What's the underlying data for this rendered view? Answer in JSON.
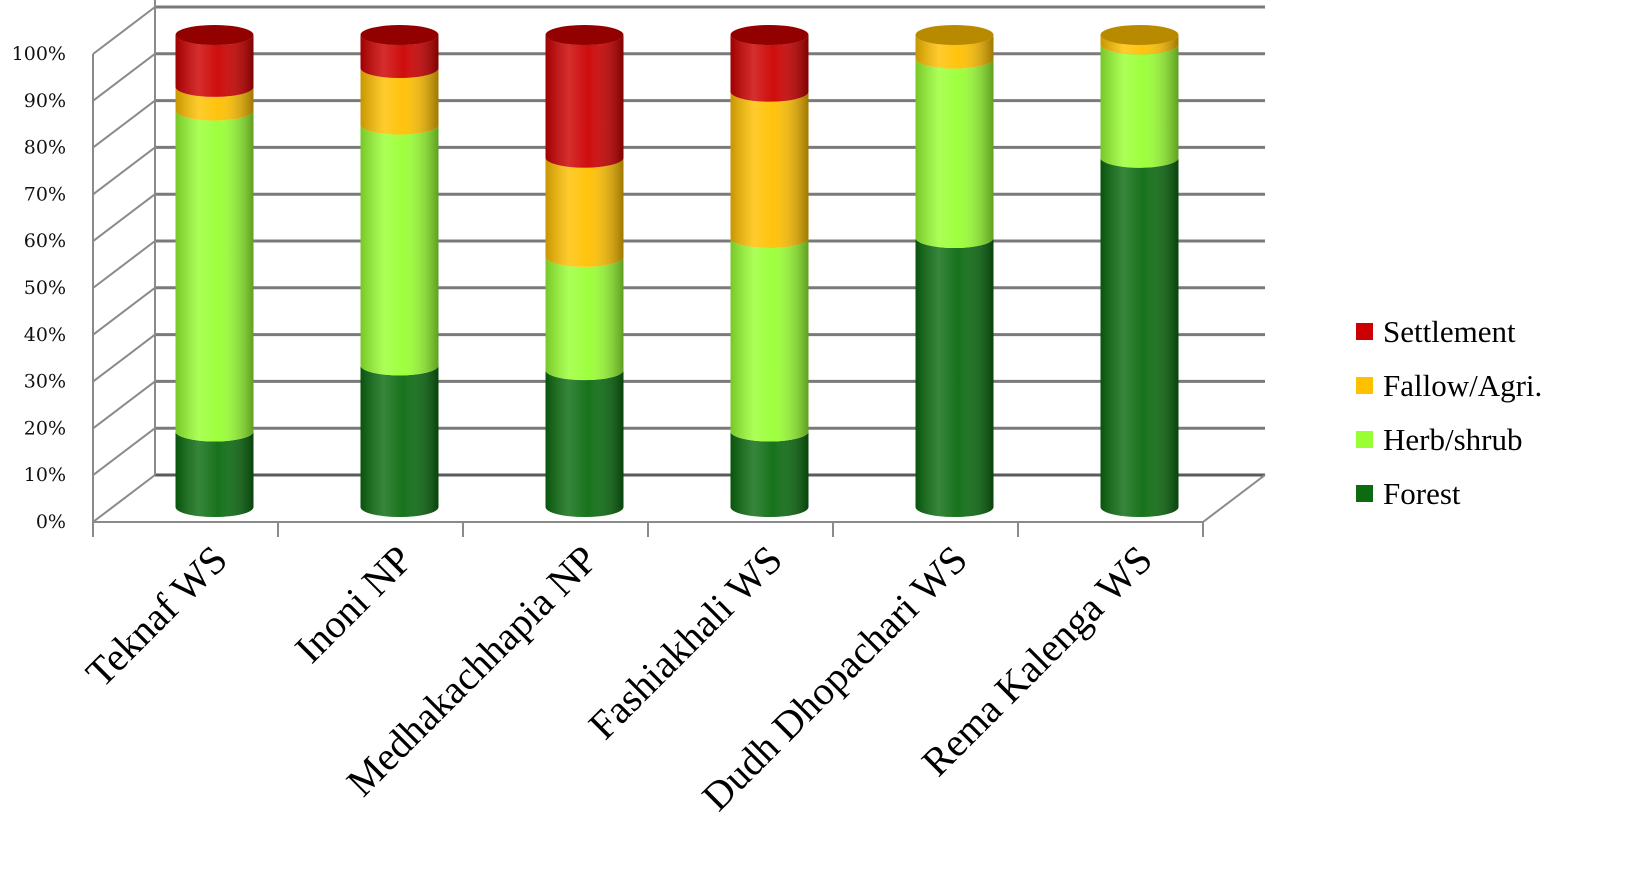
{
  "chart_data": {
    "type": "bar",
    "stacked": true,
    "stack_mode": "percent",
    "style": "3d-cylinder",
    "categories": [
      "Teknaf WS",
      "Inoni NP",
      "Medhakachhapia NP",
      "Fashiakhali WS",
      "Dudh Dhopachari WS",
      "Rema Kalenga WS"
    ],
    "series": [
      {
        "name": "Forest",
        "color": "#0b6b10",
        "values": [
          16,
          30,
          29,
          16,
          57,
          74
        ]
      },
      {
        "name": "Herb/shrub",
        "color": "#99ff33",
        "values": [
          68,
          51,
          24,
          41,
          38,
          24
        ]
      },
      {
        "name": "Fallow/Agri.",
        "color": "#ffc000",
        "values": [
          5,
          12,
          21,
          31,
          5,
          2
        ]
      },
      {
        "name": "Settlement",
        "color": "#cc0000",
        "values": [
          11,
          7,
          26,
          12,
          0,
          0
        ]
      }
    ],
    "ylim": [
      0,
      100
    ],
    "ytick_labels": [
      "0%",
      "10%",
      "20%",
      "30%",
      "40%",
      "50%",
      "60%",
      "70%",
      "80%",
      "90%",
      "100%"
    ],
    "grid": true,
    "legend_position": "right"
  }
}
